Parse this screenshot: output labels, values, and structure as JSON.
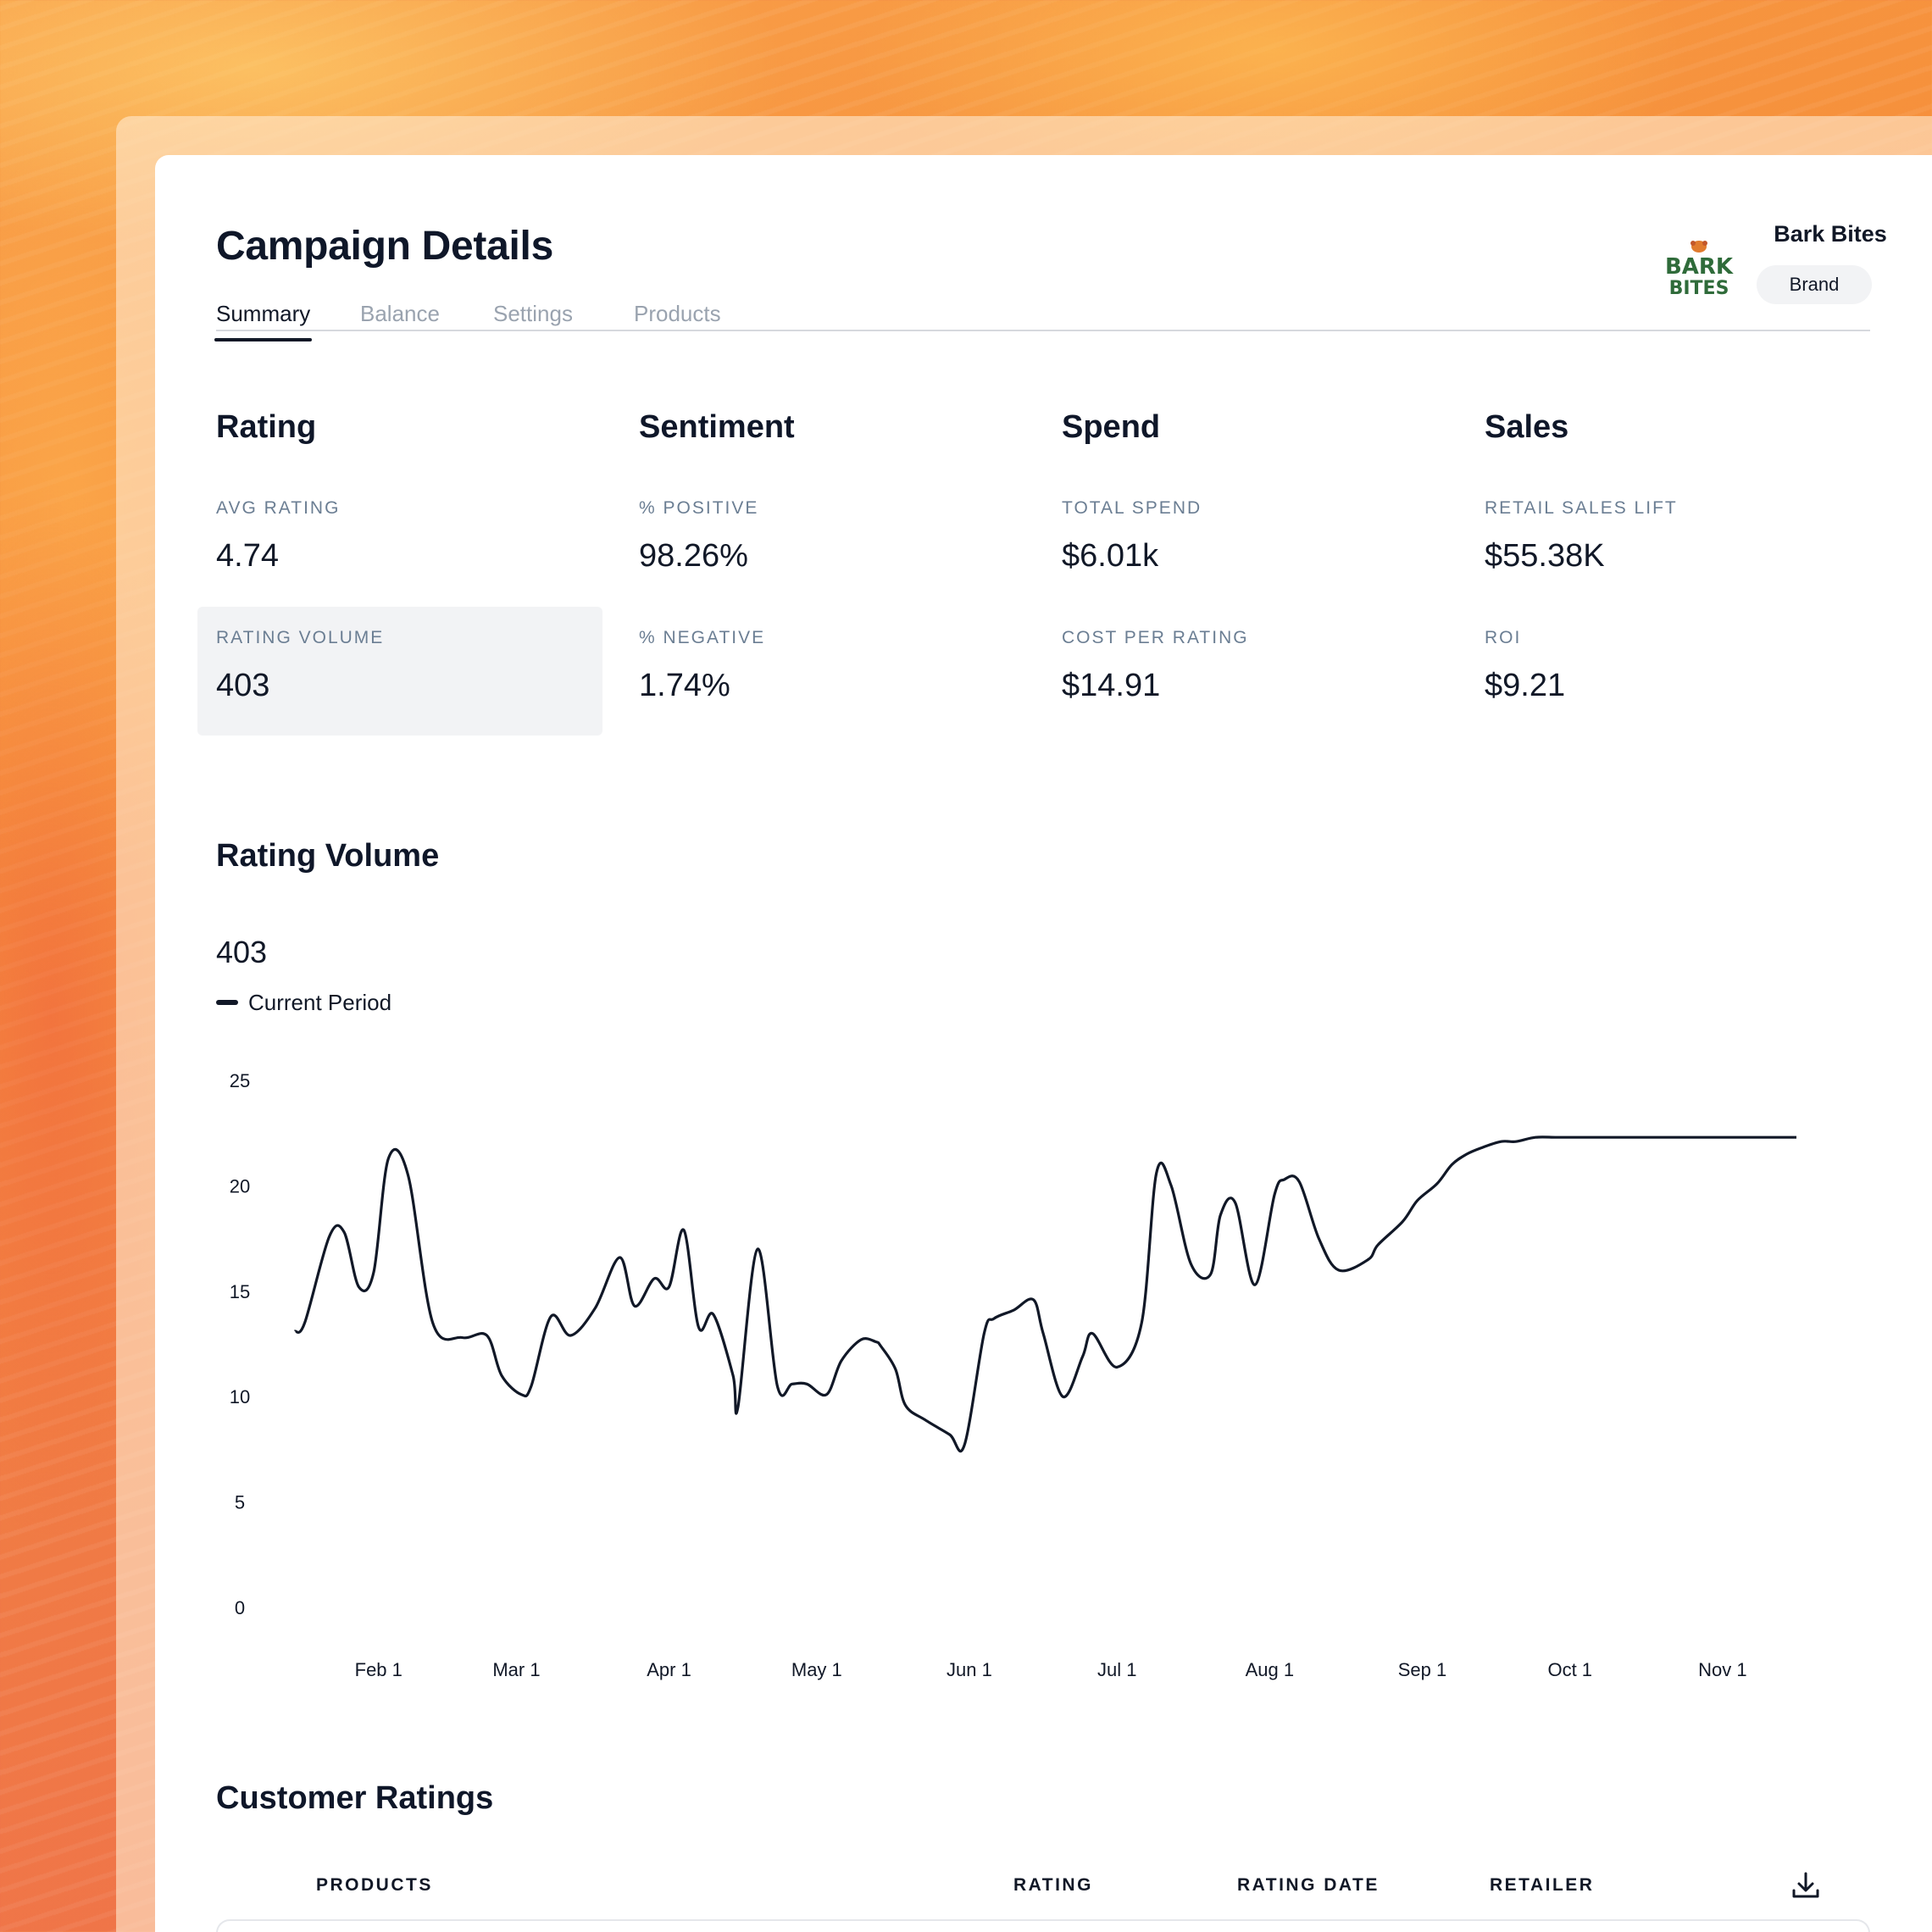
{
  "header": {
    "title": "Campaign Details"
  },
  "tabs": [
    {
      "label": "Summary",
      "active": true
    },
    {
      "label": "Balance",
      "active": false
    },
    {
      "label": "Settings",
      "active": false
    },
    {
      "label": "Products",
      "active": false
    }
  ],
  "brand": {
    "name": "Bark Bites",
    "type": "Brand",
    "logo_text_top": "BARK",
    "logo_text_bottom": "BITES"
  },
  "metrics": [
    {
      "title": "Rating",
      "items": [
        {
          "label": "AVG RATING",
          "value": "4.74"
        },
        {
          "label": "RATING VOLUME",
          "value": "403",
          "selected": true
        }
      ]
    },
    {
      "title": "Sentiment",
      "items": [
        {
          "label": "% POSITIVE",
          "value": "98.26%"
        },
        {
          "label": "% NEGATIVE",
          "value": "1.74%"
        }
      ]
    },
    {
      "title": "Spend",
      "items": [
        {
          "label": "TOTAL SPEND",
          "value": "$6.01k"
        },
        {
          "label": "COST PER RATING",
          "value": "$14.91"
        }
      ]
    },
    {
      "title": "Sales",
      "items": [
        {
          "label": "RETAIL SALES LIFT",
          "value": "$55.38K"
        },
        {
          "label": "ROI",
          "value": "$9.21"
        }
      ]
    }
  ],
  "rating_volume": {
    "title": "Rating Volume",
    "total": "403",
    "legend": "Current Period"
  },
  "chart_data": {
    "type": "line",
    "xlabel": "",
    "ylabel": "",
    "ylim": [
      0,
      25
    ],
    "yticks": [
      0,
      5,
      10,
      15,
      20,
      25
    ],
    "x_tick_labels": [
      "Feb 1",
      "Mar 1",
      "Apr 1",
      "May 1",
      "Jun 1",
      "Jul 1",
      "Aug 1",
      "Sep 1",
      "Oct 1",
      "Nov 1"
    ],
    "x_tick_days": [
      31,
      59,
      90,
      120,
      151,
      181,
      212,
      243,
      273,
      304
    ],
    "x_range_days": [
      14,
      319
    ],
    "grid": false,
    "legend_position": "top-left",
    "series": [
      {
        "name": "Current Period",
        "color": "#111827",
        "x_days": [
          14,
          16,
          21,
          24,
          27,
          30,
          33,
          37,
          42,
          48,
          53,
          56,
          60,
          62,
          66,
          70,
          75,
          80,
          83,
          87,
          90,
          93,
          96,
          99,
          103,
          104,
          108,
          112,
          115,
          118,
          122,
          125,
          129,
          132,
          133,
          136,
          138,
          142,
          147,
          150,
          154,
          156,
          160,
          164,
          166,
          170,
          174,
          176,
          181,
          186,
          189,
          192,
          196,
          200,
          202,
          205,
          209,
          213,
          215,
          218,
          222,
          226,
          232,
          234,
          239,
          242,
          246,
          249,
          252,
          255,
          259,
          262,
          266,
          270,
          273,
          275,
          279,
          283,
          288,
          291,
          294,
          296,
          303,
          308,
          312,
          315,
          319
        ],
        "values": [
          13.1,
          13.5,
          17.6,
          17.8,
          15.2,
          15.9,
          21.3,
          20.5,
          13.5,
          12.8,
          12.9,
          11.0,
          10.1,
          10.5,
          13.8,
          12.9,
          14.2,
          16.6,
          14.3,
          15.6,
          15.2,
          17.9,
          13.3,
          13.9,
          11.0,
          9.5,
          17.0,
          10.5,
          10.6,
          10.6,
          10.1,
          11.7,
          12.7,
          12.6,
          12.4,
          11.3,
          9.6,
          8.9,
          8.2,
          7.7,
          13.0,
          13.7,
          14.1,
          14.6,
          13.0,
          10.0,
          11.9,
          13.0,
          11.4,
          13.5,
          20.6,
          20.0,
          16.3,
          15.8,
          18.6,
          19.2,
          15.3,
          19.6,
          20.3,
          20.2,
          17.5,
          16.0,
          16.5,
          17.2,
          18.3,
          19.3,
          20.1,
          21.0,
          21.5,
          21.8,
          22.1,
          22.1,
          22.3,
          22.3,
          22.3,
          22.3,
          22.3,
          22.3,
          22.3,
          22.3,
          22.3,
          22.3,
          22.3,
          22.3,
          22.3,
          22.3,
          22.3
        ]
      }
    ]
  },
  "customer_ratings": {
    "title": "Customer Ratings",
    "columns": [
      "PRODUCTS",
      "RATING",
      "RATING DATE",
      "RETAILER"
    ]
  },
  "icons": {
    "download": "download-icon"
  }
}
